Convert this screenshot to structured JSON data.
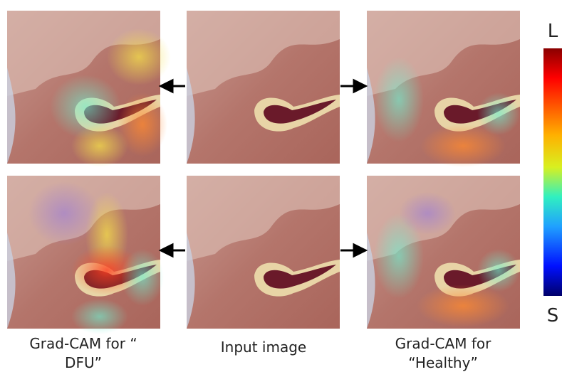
{
  "captions": [
    {
      "lines": [
        "Grad-CAM for “",
        "DFU”"
      ]
    },
    {
      "lines": [
        "Input image"
      ]
    },
    {
      "lines": [
        "Grad-CAM for",
        "“Healthy”"
      ]
    }
  ],
  "colorbar": {
    "top_label": "L",
    "bottom_label": "S"
  }
}
